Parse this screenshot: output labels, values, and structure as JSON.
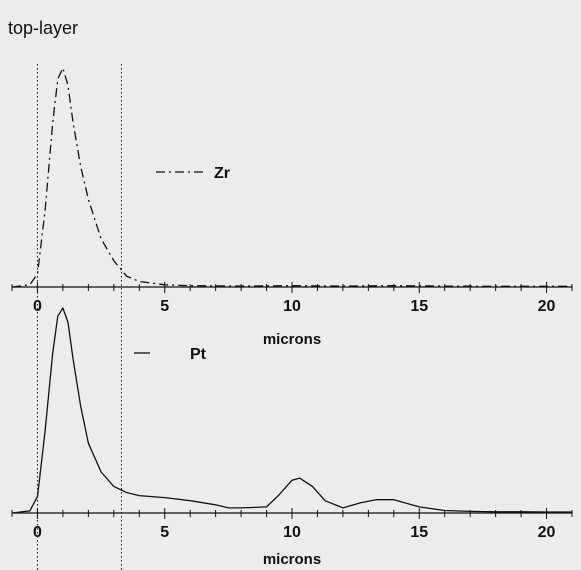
{
  "title": "top-layer",
  "colors": {
    "line": "#111111",
    "background": "#ececec"
  },
  "chart_data": [
    {
      "type": "line",
      "title": "top-layer",
      "xlabel": "microns",
      "ylabel": "",
      "xlim": [
        -1,
        21
      ],
      "xticks": [
        0,
        5,
        10,
        15,
        20
      ],
      "xtick_labels": [
        "0",
        "5",
        "10",
        "15",
        "20"
      ],
      "ylim": [
        0,
        1
      ],
      "grid": false,
      "legend_position": "middle",
      "reference_lines_x": [
        0,
        3.3
      ],
      "series": [
        {
          "name": "Zr",
          "style": "dash-dot",
          "x": [
            -1,
            -0.3,
            0,
            0.3,
            0.6,
            0.8,
            1.0,
            1.2,
            1.4,
            1.7,
            2.0,
            2.5,
            3.0,
            3.5,
            4.0,
            5.0,
            6.0,
            8.0,
            10.0,
            12.0,
            14.0,
            16.0,
            18.0,
            20.0,
            21.0
          ],
          "y": [
            0.0,
            0.01,
            0.06,
            0.35,
            0.75,
            0.95,
            1.0,
            0.92,
            0.75,
            0.55,
            0.4,
            0.22,
            0.12,
            0.05,
            0.025,
            0.01,
            0.006,
            0.004,
            0.006,
            0.004,
            0.006,
            0.004,
            0.003,
            0.003,
            0.003
          ]
        }
      ]
    },
    {
      "type": "line",
      "xlabel": "microns",
      "ylabel": "",
      "xlim": [
        -1,
        21
      ],
      "xticks": [
        0,
        5,
        10,
        15,
        20
      ],
      "xtick_labels": [
        "0",
        "5",
        "10",
        "15",
        "20"
      ],
      "ylim": [
        0,
        1
      ],
      "grid": false,
      "legend_position": "top-left",
      "reference_lines_x": [
        0,
        3.3
      ],
      "series": [
        {
          "name": "Pt",
          "style": "solid",
          "x": [
            -1,
            -0.3,
            0,
            0.3,
            0.6,
            0.8,
            1.0,
            1.2,
            1.4,
            1.7,
            2.0,
            2.5,
            3.0,
            3.5,
            4.0,
            5.0,
            6.0,
            7.0,
            7.5,
            8.0,
            9.0,
            9.5,
            10.0,
            10.3,
            10.8,
            11.3,
            12.0,
            12.7,
            13.3,
            14.0,
            15.0,
            16.0,
            17.0,
            18.0,
            19.0,
            20.0,
            21.0
          ],
          "y": [
            0.0,
            0.01,
            0.08,
            0.4,
            0.78,
            0.96,
            1.0,
            0.93,
            0.75,
            0.52,
            0.34,
            0.2,
            0.13,
            0.1,
            0.085,
            0.075,
            0.06,
            0.04,
            0.025,
            0.025,
            0.03,
            0.09,
            0.16,
            0.17,
            0.13,
            0.06,
            0.025,
            0.05,
            0.065,
            0.065,
            0.03,
            0.012,
            0.008,
            0.006,
            0.006,
            0.005,
            0.005
          ]
        }
      ]
    }
  ]
}
